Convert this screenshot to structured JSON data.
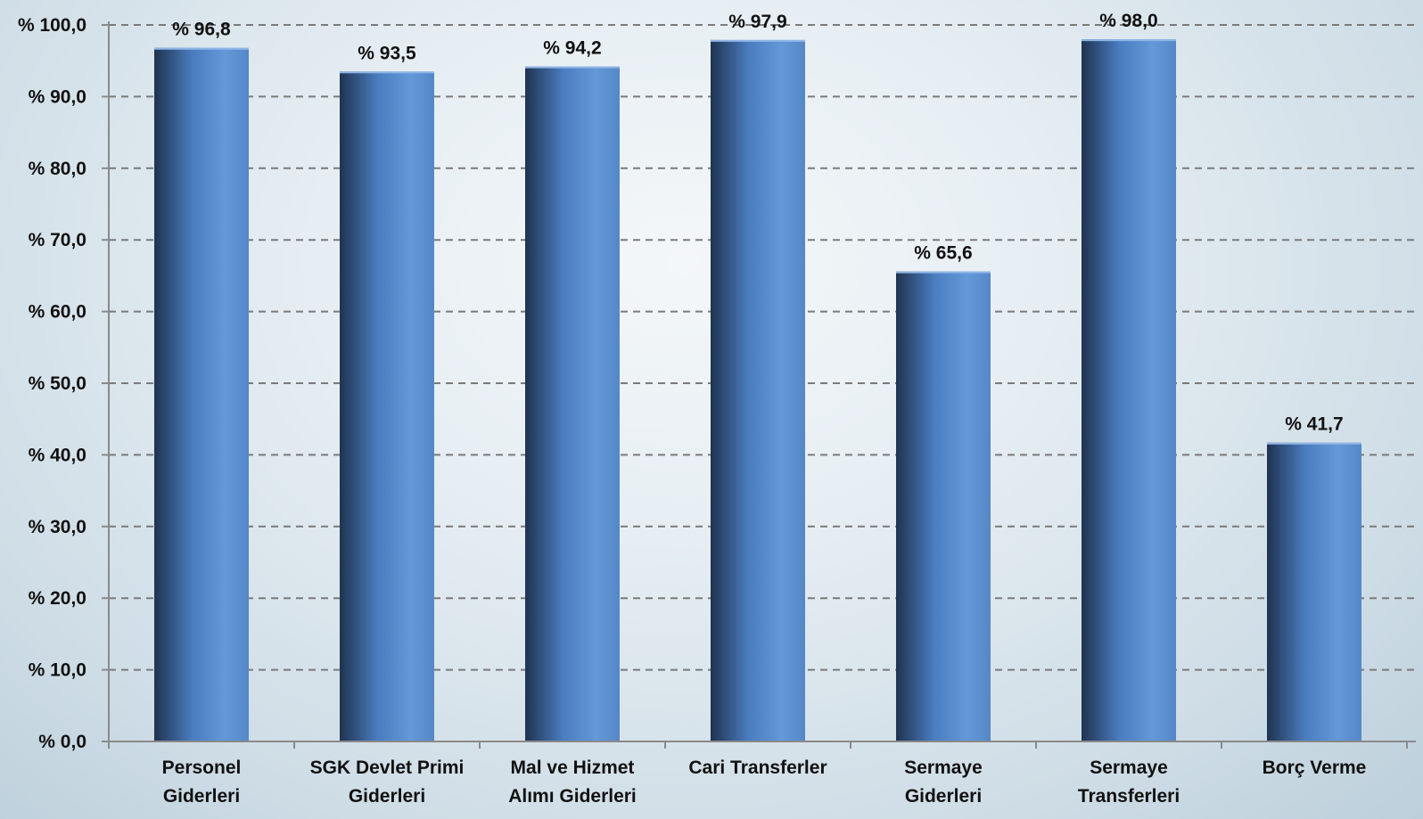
{
  "chart_data": {
    "type": "bar",
    "categories": [
      [
        "Personel",
        "Giderleri"
      ],
      [
        "SGK Devlet Primi",
        "Giderleri"
      ],
      [
        "Mal ve Hizmet",
        "Alımı Giderleri"
      ],
      [
        "Cari Transferler"
      ],
      [
        "Sermaye",
        "Giderleri"
      ],
      [
        "Sermaye",
        "Transferleri"
      ],
      [
        "Borç Verme"
      ]
    ],
    "values": [
      96.8,
      93.5,
      94.2,
      97.9,
      65.6,
      98.0,
      41.7
    ],
    "data_labels": [
      "% 96,8",
      "% 93,5",
      "% 94,2",
      "% 97,9",
      "% 65,6",
      "% 98,0",
      "% 41,7"
    ],
    "y_ticks": [
      "% 0,0",
      "% 10,0",
      "% 20,0",
      "% 30,0",
      "% 40,0",
      "% 50,0",
      "% 60,0",
      "% 70,0",
      "% 80,0",
      "% 90,0",
      "% 100,0"
    ],
    "ylim": [
      0,
      100
    ],
    "grid": true,
    "legend": "none",
    "title": "",
    "xlabel": "",
    "ylabel": "",
    "colors": {
      "bar_dark": "#1f3350",
      "bar_mid": "#4a7cbf",
      "bar_light": "#6399d8"
    }
  }
}
